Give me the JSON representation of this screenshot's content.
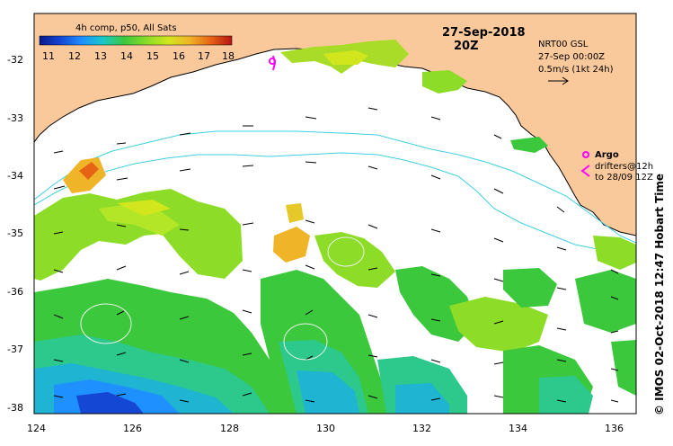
{
  "map": {
    "composite_label": "4h comp, p50, All Sats",
    "date": "27-Sep-2018",
    "time": "20Z",
    "current_source": "NRT00 GSL",
    "current_time": "27-Sep 00:00Z",
    "arrow_scale": "0.5m/s (1kt 24h)",
    "side_credit": "© IMOS 02-Oct-2018 12:47 Hobart Time",
    "legend": {
      "argo_label": "Argo",
      "drifters_label_1": "drifters@12h",
      "drifters_label_2": "to 28/09 12Z",
      "argo_color": "#ff00ff",
      "drifter_color": "#ff00ff"
    },
    "colorbar": {
      "ticks": [
        "11",
        "12",
        "13",
        "14",
        "15",
        "16",
        "17",
        "18"
      ],
      "min": 11,
      "max": 18,
      "colors": [
        "#0a1a8c",
        "#1447d4",
        "#1e90ff",
        "#19c8c8",
        "#3cc83c",
        "#8cdc28",
        "#d2e61e",
        "#f0b428",
        "#e66414",
        "#b41414"
      ]
    },
    "axes": {
      "lon_ticks": [
        "124",
        "126",
        "128",
        "130",
        "132",
        "134",
        "136"
      ],
      "lat_ticks": [
        "-32",
        "-33",
        "-34",
        "-35",
        "-36",
        "-37",
        "-38"
      ],
      "lon_range": [
        124,
        136.6
      ],
      "lat_range": [
        -38.1,
        -31.4
      ]
    },
    "colors": {
      "land": "#f9c99b",
      "ocean": "#ffffff",
      "bathymetry": "#40d0e0",
      "arrows": "#000000"
    }
  }
}
